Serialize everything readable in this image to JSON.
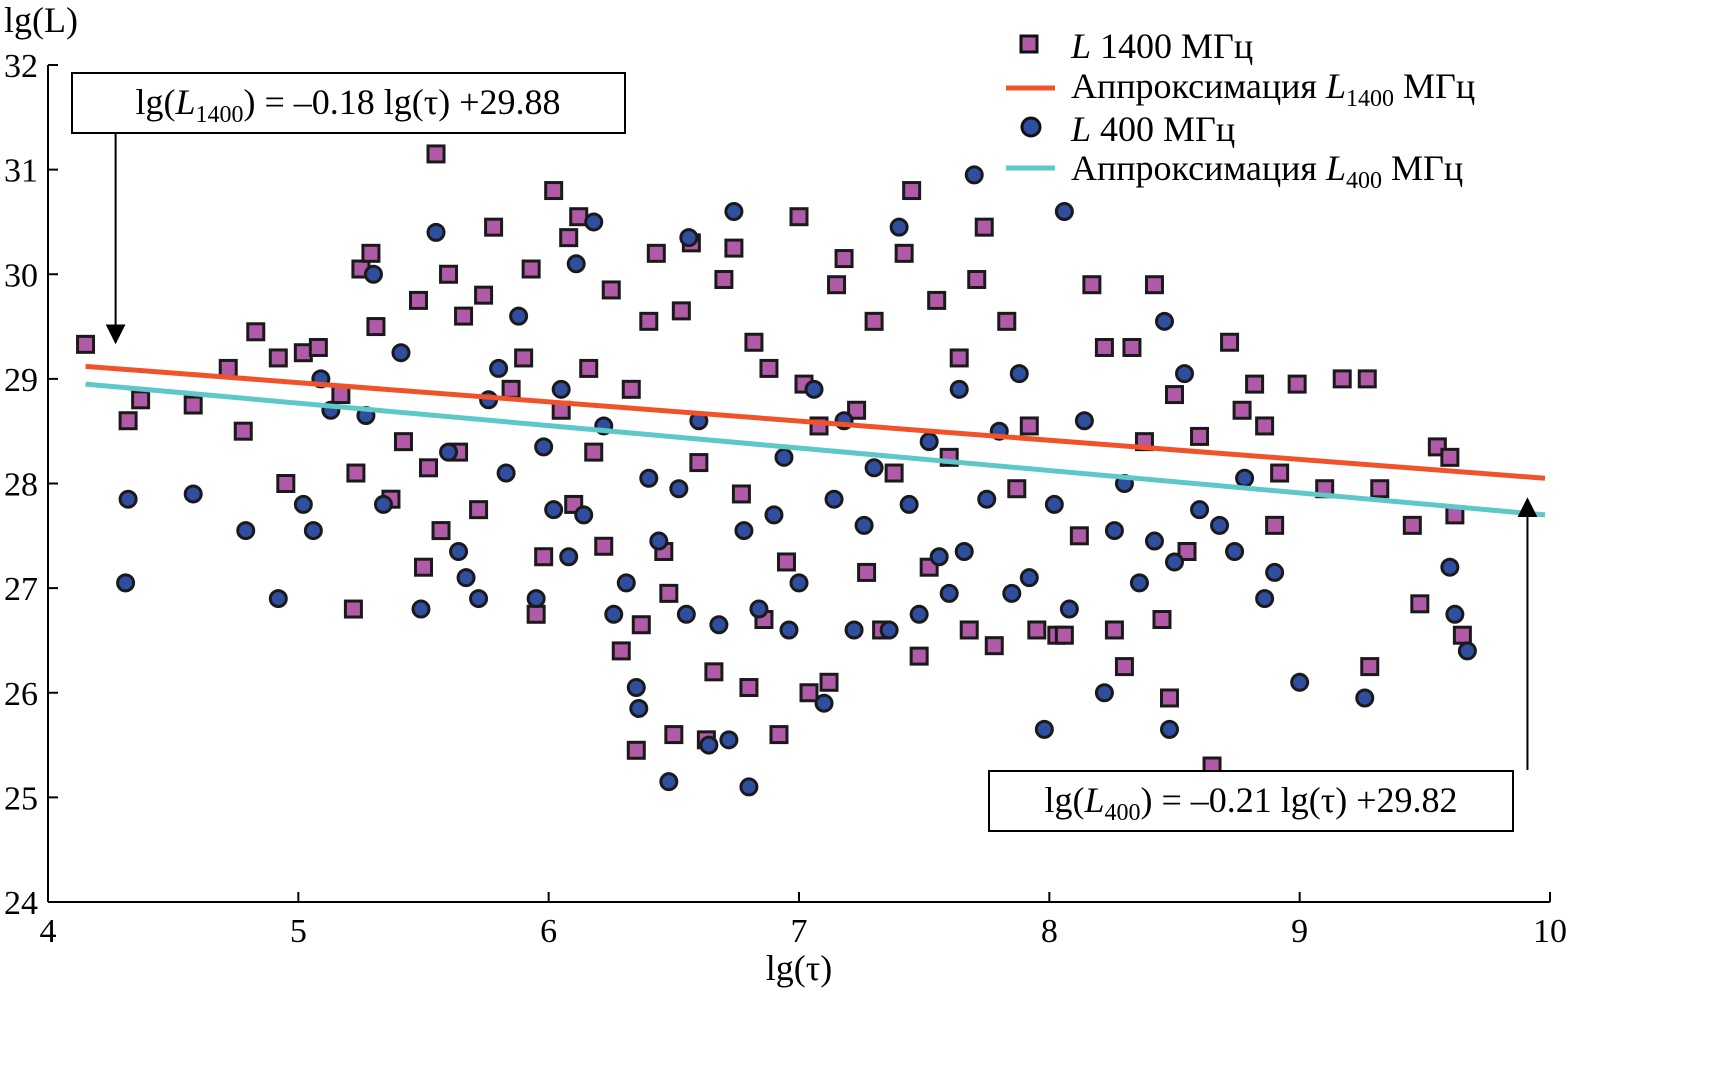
{
  "chart_data": {
    "type": "scatter",
    "xlabel": "lg(τ)",
    "ylabel": "lg(L)",
    "xlim": [
      4,
      10
    ],
    "ylim": [
      24,
      32
    ],
    "x_ticks": [
      "4",
      "5",
      "6",
      "7",
      "8",
      "9",
      "10"
    ],
    "y_ticks": [
      "24",
      "25",
      "26",
      "27",
      "28",
      "29",
      "30",
      "31",
      "32"
    ],
    "grid": false,
    "legend_position": "top-right",
    "series": [
      {
        "name": "L 1400 МГц",
        "marker": "square",
        "color": "#b05aa8",
        "points": [
          [
            4.15,
            29.33
          ],
          [
            4.32,
            28.6
          ],
          [
            4.37,
            28.8
          ],
          [
            4.58,
            28.75
          ],
          [
            4.72,
            29.1
          ],
          [
            4.78,
            28.5
          ],
          [
            4.83,
            29.45
          ],
          [
            4.92,
            29.2
          ],
          [
            4.95,
            28.0
          ],
          [
            5.02,
            29.25
          ],
          [
            5.08,
            29.3
          ],
          [
            5.17,
            28.85
          ],
          [
            5.22,
            26.8
          ],
          [
            5.23,
            28.1
          ],
          [
            5.25,
            30.05
          ],
          [
            5.29,
            30.2
          ],
          [
            5.31,
            29.5
          ],
          [
            5.37,
            27.85
          ],
          [
            5.42,
            28.4
          ],
          [
            5.48,
            29.75
          ],
          [
            5.5,
            27.2
          ],
          [
            5.52,
            28.15
          ],
          [
            5.55,
            31.15
          ],
          [
            5.57,
            27.55
          ],
          [
            5.6,
            30.0
          ],
          [
            5.64,
            28.3
          ],
          [
            5.66,
            29.6
          ],
          [
            5.72,
            27.75
          ],
          [
            5.74,
            29.8
          ],
          [
            5.78,
            30.45
          ],
          [
            5.85,
            28.9
          ],
          [
            5.9,
            29.2
          ],
          [
            5.93,
            30.05
          ],
          [
            5.95,
            26.75
          ],
          [
            5.98,
            27.3
          ],
          [
            6.02,
            30.8
          ],
          [
            6.05,
            28.7
          ],
          [
            6.08,
            30.35
          ],
          [
            6.1,
            27.8
          ],
          [
            6.12,
            30.55
          ],
          [
            6.16,
            29.1
          ],
          [
            6.18,
            28.3
          ],
          [
            6.22,
            27.4
          ],
          [
            6.25,
            29.85
          ],
          [
            6.29,
            26.4
          ],
          [
            6.33,
            28.9
          ],
          [
            6.35,
            25.45
          ],
          [
            6.37,
            26.65
          ],
          [
            6.4,
            29.55
          ],
          [
            6.43,
            30.2
          ],
          [
            6.46,
            27.35
          ],
          [
            6.48,
            26.95
          ],
          [
            6.5,
            25.6
          ],
          [
            6.53,
            29.65
          ],
          [
            6.57,
            30.3
          ],
          [
            6.6,
            28.2
          ],
          [
            6.63,
            25.55
          ],
          [
            6.66,
            26.2
          ],
          [
            6.7,
            29.95
          ],
          [
            6.74,
            30.25
          ],
          [
            6.77,
            27.9
          ],
          [
            6.8,
            26.05
          ],
          [
            6.82,
            29.35
          ],
          [
            6.86,
            26.7
          ],
          [
            6.88,
            29.1
          ],
          [
            6.92,
            25.6
          ],
          [
            6.95,
            27.25
          ],
          [
            7.0,
            30.55
          ],
          [
            7.02,
            28.95
          ],
          [
            7.04,
            26.0
          ],
          [
            7.08,
            28.55
          ],
          [
            7.12,
            26.1
          ],
          [
            7.15,
            29.9
          ],
          [
            7.18,
            30.15
          ],
          [
            7.23,
            28.7
          ],
          [
            7.27,
            27.15
          ],
          [
            7.3,
            29.55
          ],
          [
            7.33,
            26.6
          ],
          [
            7.38,
            28.1
          ],
          [
            7.42,
            30.2
          ],
          [
            7.45,
            30.8
          ],
          [
            7.48,
            26.35
          ],
          [
            7.52,
            27.2
          ],
          [
            7.55,
            29.75
          ],
          [
            7.6,
            28.25
          ],
          [
            7.64,
            29.2
          ],
          [
            7.68,
            26.6
          ],
          [
            7.71,
            29.95
          ],
          [
            7.74,
            30.45
          ],
          [
            7.78,
            26.45
          ],
          [
            7.83,
            29.55
          ],
          [
            7.87,
            27.95
          ],
          [
            7.92,
            28.55
          ],
          [
            7.95,
            26.6
          ],
          [
            8.03,
            26.55
          ],
          [
            8.06,
            26.55
          ],
          [
            8.12,
            27.5
          ],
          [
            8.17,
            29.9
          ],
          [
            8.22,
            29.3
          ],
          [
            8.26,
            26.6
          ],
          [
            8.3,
            26.25
          ],
          [
            8.33,
            29.3
          ],
          [
            8.38,
            28.4
          ],
          [
            8.42,
            29.9
          ],
          [
            8.45,
            26.7
          ],
          [
            8.48,
            25.95
          ],
          [
            8.5,
            28.85
          ],
          [
            8.55,
            27.35
          ],
          [
            8.6,
            28.45
          ],
          [
            8.65,
            25.3
          ],
          [
            8.72,
            29.35
          ],
          [
            8.77,
            28.7
          ],
          [
            8.82,
            28.95
          ],
          [
            8.86,
            28.55
          ],
          [
            8.9,
            27.6
          ],
          [
            8.92,
            28.1
          ],
          [
            8.99,
            28.95
          ],
          [
            9.1,
            27.95
          ],
          [
            9.17,
            29.0
          ],
          [
            9.27,
            29.0
          ],
          [
            9.28,
            26.25
          ],
          [
            9.32,
            27.95
          ],
          [
            9.45,
            27.6
          ],
          [
            9.48,
            26.85
          ],
          [
            9.55,
            28.35
          ],
          [
            9.6,
            28.25
          ],
          [
            9.62,
            27.7
          ],
          [
            9.65,
            26.55
          ]
        ]
      },
      {
        "name": "L 400 МГц",
        "marker": "circle",
        "color": "#2f4ea0",
        "points": [
          [
            4.31,
            27.05
          ],
          [
            4.32,
            27.85
          ],
          [
            4.58,
            27.9
          ],
          [
            4.79,
            27.55
          ],
          [
            4.92,
            26.9
          ],
          [
            5.02,
            27.8
          ],
          [
            5.06,
            27.55
          ],
          [
            5.09,
            29.0
          ],
          [
            5.13,
            28.7
          ],
          [
            5.27,
            28.65
          ],
          [
            5.3,
            30.0
          ],
          [
            5.34,
            27.8
          ],
          [
            5.41,
            29.25
          ],
          [
            5.49,
            26.8
          ],
          [
            5.55,
            30.4
          ],
          [
            5.6,
            28.3
          ],
          [
            5.64,
            27.35
          ],
          [
            5.67,
            27.1
          ],
          [
            5.72,
            26.9
          ],
          [
            5.76,
            28.8
          ],
          [
            5.8,
            29.1
          ],
          [
            5.83,
            28.1
          ],
          [
            5.88,
            29.6
          ],
          [
            5.95,
            26.9
          ],
          [
            5.98,
            28.35
          ],
          [
            6.02,
            27.75
          ],
          [
            6.05,
            28.9
          ],
          [
            6.08,
            27.3
          ],
          [
            6.11,
            30.1
          ],
          [
            6.14,
            27.7
          ],
          [
            6.18,
            30.5
          ],
          [
            6.22,
            28.55
          ],
          [
            6.26,
            26.75
          ],
          [
            6.31,
            27.05
          ],
          [
            6.35,
            26.05
          ],
          [
            6.36,
            25.85
          ],
          [
            6.4,
            28.05
          ],
          [
            6.44,
            27.45
          ],
          [
            6.48,
            25.15
          ],
          [
            6.52,
            27.95
          ],
          [
            6.55,
            26.75
          ],
          [
            6.56,
            30.35
          ],
          [
            6.6,
            28.6
          ],
          [
            6.64,
            25.5
          ],
          [
            6.68,
            26.65
          ],
          [
            6.72,
            25.55
          ],
          [
            6.74,
            30.6
          ],
          [
            6.78,
            27.55
          ],
          [
            6.8,
            25.1
          ],
          [
            6.84,
            26.8
          ],
          [
            6.9,
            27.7
          ],
          [
            6.94,
            28.25
          ],
          [
            6.96,
            26.6
          ],
          [
            7.0,
            27.05
          ],
          [
            7.06,
            28.9
          ],
          [
            7.1,
            25.9
          ],
          [
            7.14,
            27.85
          ],
          [
            7.18,
            28.6
          ],
          [
            7.22,
            26.6
          ],
          [
            7.26,
            27.6
          ],
          [
            7.3,
            28.15
          ],
          [
            7.36,
            26.6
          ],
          [
            7.4,
            30.45
          ],
          [
            7.44,
            27.8
          ],
          [
            7.48,
            26.75
          ],
          [
            7.52,
            28.4
          ],
          [
            7.56,
            27.3
          ],
          [
            7.6,
            26.95
          ],
          [
            7.64,
            28.9
          ],
          [
            7.66,
            27.35
          ],
          [
            7.7,
            30.95
          ],
          [
            7.75,
            27.85
          ],
          [
            7.8,
            28.5
          ],
          [
            7.85,
            26.95
          ],
          [
            7.88,
            29.05
          ],
          [
            7.92,
            27.1
          ],
          [
            7.98,
            25.65
          ],
          [
            8.02,
            27.8
          ],
          [
            8.06,
            30.6
          ],
          [
            8.08,
            26.8
          ],
          [
            8.14,
            28.6
          ],
          [
            8.22,
            26.0
          ],
          [
            8.26,
            27.55
          ],
          [
            8.3,
            28.0
          ],
          [
            8.36,
            27.05
          ],
          [
            8.42,
            27.45
          ],
          [
            8.46,
            29.55
          ],
          [
            8.48,
            25.65
          ],
          [
            8.5,
            27.25
          ],
          [
            8.54,
            29.05
          ],
          [
            8.6,
            27.75
          ],
          [
            8.68,
            27.6
          ],
          [
            8.74,
            27.35
          ],
          [
            8.78,
            28.05
          ],
          [
            8.86,
            26.9
          ],
          [
            8.9,
            27.15
          ],
          [
            9.0,
            26.1
          ],
          [
            9.26,
            25.95
          ],
          [
            9.6,
            27.2
          ],
          [
            9.62,
            26.75
          ],
          [
            9.67,
            26.4
          ]
        ]
      }
    ],
    "fits": [
      {
        "name": "Аппроксимация L1400 МГц",
        "color": "#f0522a",
        "x": [
          4.15,
          9.98
        ],
        "y": [
          29.12,
          28.05
        ]
      },
      {
        "name": "Аппроксимация L400 МГц",
        "color": "#5ec7c8",
        "x": [
          4.15,
          9.98
        ],
        "y": [
          28.95,
          27.7
        ]
      }
    ],
    "legend": [
      {
        "italic": "L",
        "text": " 1400 МГц"
      },
      {
        "text": "Аппроксимация ",
        "italic": "L",
        "sub": "1400",
        "tail": " МГц"
      },
      {
        "italic": "L",
        "text": " 400 МГц"
      },
      {
        "text": "Аппроксимация ",
        "italic": "L",
        "sub": "400",
        "tail": " МГц"
      }
    ],
    "annotations": [
      {
        "prefix": "lg(",
        "italic": "L",
        "sub": "1400",
        "suffix": ") = –0.18 lg(τ) +29.88",
        "arrow_target": [
          4.27,
          29.35
        ]
      },
      {
        "prefix": "lg(",
        "italic": "L",
        "sub": "400",
        "suffix": ") = –0.21 lg(τ) +29.82",
        "arrow_target": [
          9.91,
          27.85
        ]
      }
    ]
  }
}
